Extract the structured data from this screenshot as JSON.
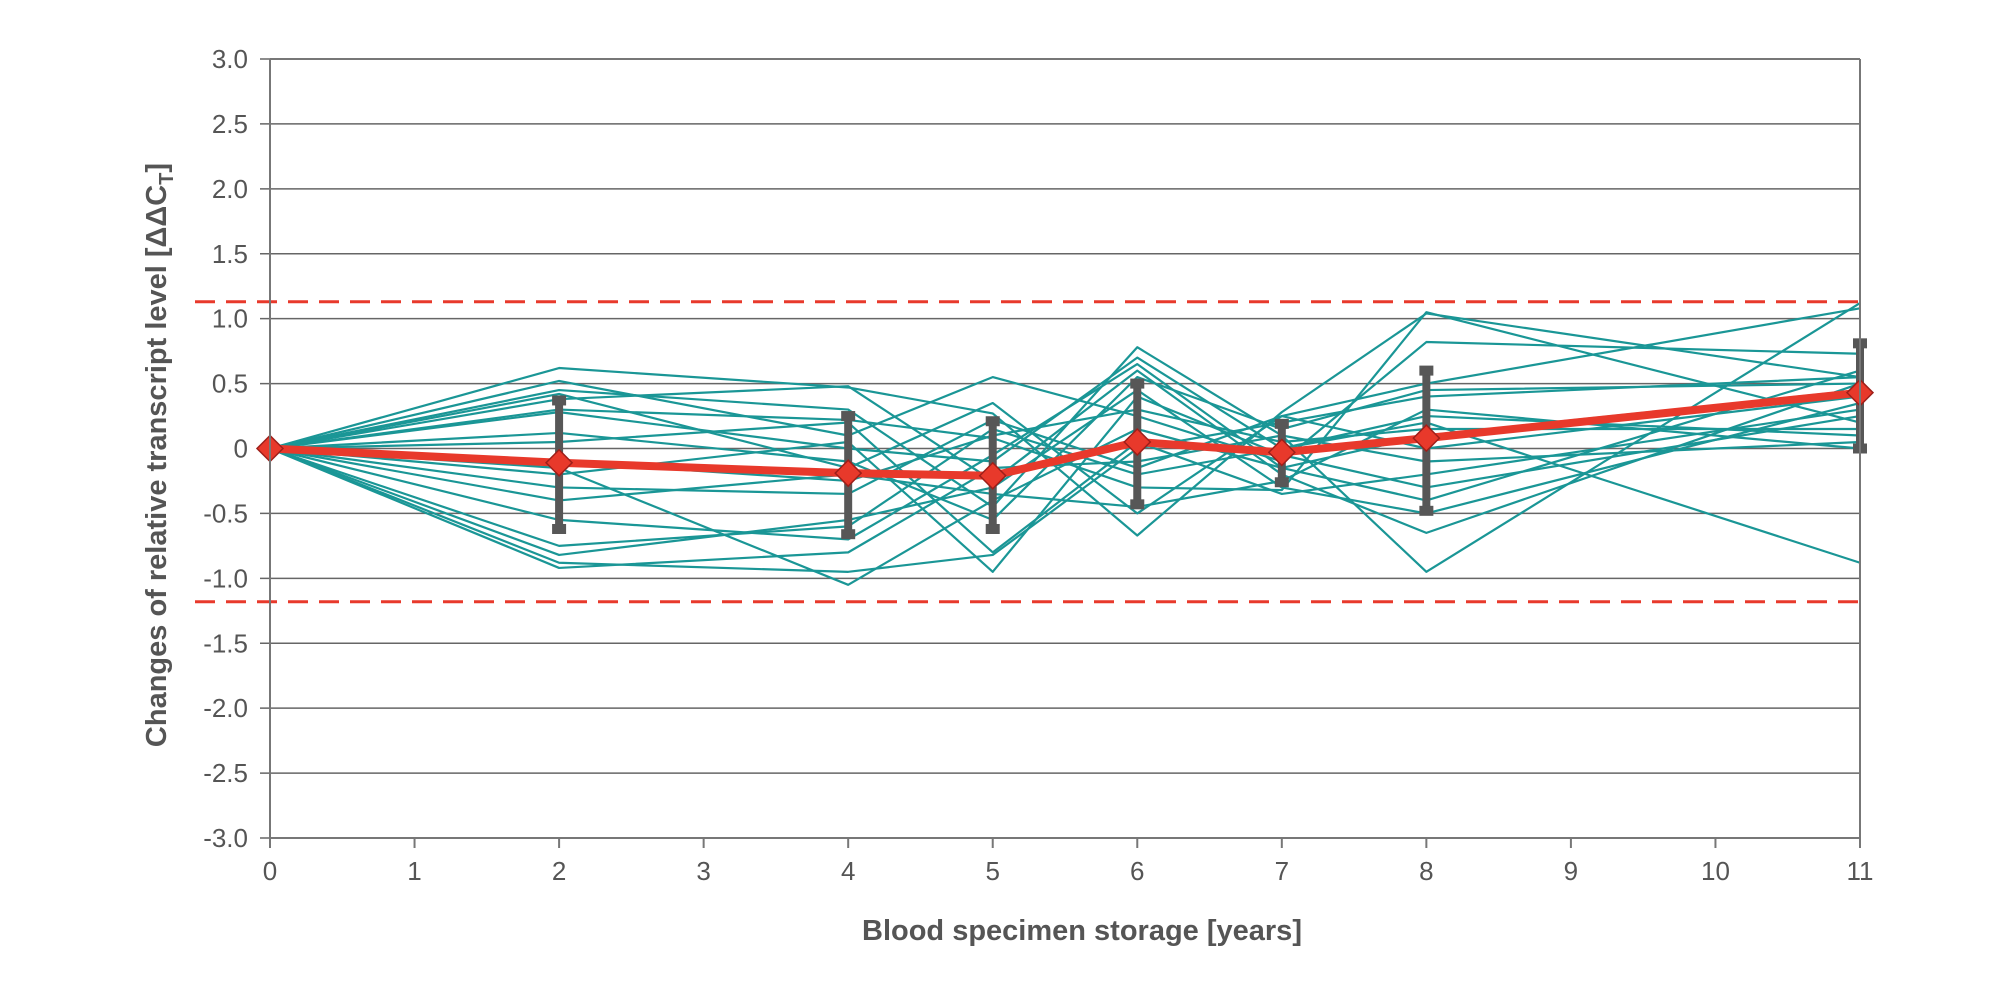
{
  "chart_data": {
    "type": "line",
    "xlabel": "Blood specimen storage [years]",
    "ylabel": "Changes of relative transcript level [ΔΔC",
    "ylabel_subscript": "T",
    "ylabel_suffix": "]",
    "xlim": [
      0,
      11
    ],
    "ylim": [
      -3.0,
      3.0
    ],
    "x_ticks": [
      0,
      1,
      2,
      3,
      4,
      5,
      6,
      7,
      8,
      9,
      10,
      11
    ],
    "x_tick_labels": [
      "0",
      "1",
      "2",
      "3",
      "4",
      "5",
      "6",
      "7",
      "8",
      "9",
      "10",
      "11"
    ],
    "y_ticks": [
      3.0,
      2.5,
      2.0,
      1.5,
      1.0,
      0.5,
      0,
      -0.5,
      -1.0,
      -1.5,
      -2.0,
      -2.5,
      -3.0
    ],
    "y_tick_labels": [
      "3.0",
      "2.5",
      "2.0",
      "1.5",
      "1.0",
      "0.5",
      "0",
      "-0.5",
      "-1.0",
      "-1.5",
      "-2.0",
      "-2.5",
      "-3.0"
    ],
    "grid": "horizontal",
    "threshold_lines": [
      1.13,
      -1.18
    ],
    "x": [
      0,
      2,
      4,
      5,
      6,
      7,
      8,
      11
    ],
    "individual_series": [
      [
        0,
        0.62,
        0.47,
        0.27,
        -0.67,
        0.28,
        1.04,
        0.55
      ],
      [
        0,
        0.52,
        0.1,
        0.55,
        0.25,
        -0.1,
        0.82,
        0.73
      ],
      [
        0,
        0.45,
        0.3,
        -0.45,
        0.78,
        0.1,
        -0.95,
        1.12
      ],
      [
        0,
        0.42,
        -0.15,
        0.35,
        -0.5,
        0.25,
        0.5,
        1.08
      ],
      [
        0,
        0.38,
        0.48,
        -0.25,
        0.6,
        -0.2,
        -0.65,
        0.5
      ],
      [
        0,
        0.3,
        0.22,
        0.08,
        -0.3,
        -0.32,
        1.05,
        0.2
      ],
      [
        0,
        0.28,
        0.0,
        -0.1,
        0.7,
        0.0,
        0.2,
        -0.88
      ],
      [
        0,
        0.12,
        -0.1,
        -0.55,
        0.55,
        0.15,
        0.45,
        0.5
      ],
      [
        0,
        0.05,
        0.2,
        -0.8,
        0.05,
        -0.35,
        -0.2,
        0.3
      ],
      [
        0,
        -0.1,
        -0.25,
        0.1,
        0.3,
        0.05,
        0.15,
        0.15
      ],
      [
        0,
        -0.2,
        0.05,
        -0.95,
        0.4,
        -0.05,
        -0.3,
        0.25
      ],
      [
        0,
        -0.3,
        -0.35,
        0.22,
        -0.15,
        0.25,
        0.0,
        0.4
      ],
      [
        0,
        -0.4,
        -0.2,
        -0.35,
        -0.45,
        -0.25,
        0.3,
        0.0
      ],
      [
        0,
        -0.55,
        -0.7,
        -0.05,
        0.65,
        -0.15,
        -0.4,
        0.6
      ],
      [
        0,
        -0.75,
        -0.6,
        0.15,
        -0.2,
        0.0,
        0.25,
        0.1
      ],
      [
        0,
        -0.82,
        -0.55,
        -0.3,
        0.45,
        -0.3,
        -0.5,
        0.35
      ],
      [
        0,
        -0.88,
        -0.95,
        -0.82,
        0.0,
        0.2,
        0.4,
        0.55
      ],
      [
        0,
        -0.92,
        -0.8,
        -0.15,
        -0.1,
        0.1,
        -0.1,
        0.05
      ],
      [
        0,
        -0.15,
        -1.05,
        -0.4,
        0.15,
        -0.15,
        0.1,
        0.45
      ]
    ],
    "mean_series": {
      "values": [
        0,
        -0.11,
        -0.19,
        -0.21,
        0.05,
        -0.03,
        0.08,
        0.43
      ],
      "error_low": [
        0,
        -0.62,
        -0.66,
        -0.62,
        -0.43,
        -0.26,
        -0.48,
        0.0
      ],
      "error_high": [
        0,
        0.37,
        0.25,
        0.21,
        0.5,
        0.19,
        0.6,
        0.81
      ]
    },
    "colors": {
      "individual": "#1a9696",
      "mean": "#e8392b",
      "mean_marker_stroke": "#9e1f1a",
      "error_bar": "#575757",
      "threshold": "#e8392b",
      "grid": "#666666",
      "axis": "#777777"
    }
  }
}
